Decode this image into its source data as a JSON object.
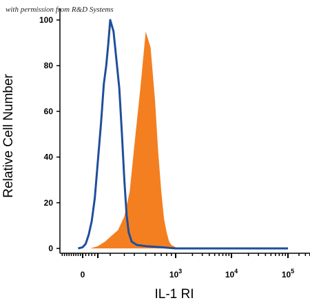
{
  "watermark": "with permission from R&D Systems",
  "chart_data": {
    "type": "area",
    "xlabel": "IL-1 RI",
    "ylabel": "Relative Cell Number",
    "x_scale": "biexponential (log above ~10^2)",
    "ylim": [
      0,
      100
    ],
    "y_ticks": [
      "0",
      "20",
      "40",
      "60",
      "80",
      "100"
    ],
    "x_ticks": [
      {
        "base": "0",
        "exp": ""
      },
      {
        "base": "10",
        "exp": "3"
      },
      {
        "base": "10",
        "exp": "4"
      },
      {
        "base": "10",
        "exp": "5"
      }
    ],
    "grid": false,
    "series": [
      {
        "color": "#1f4e9c",
        "style": "outline",
        "points": [
          [
            -40,
            0
          ],
          [
            0,
            0.5
          ],
          [
            20,
            2
          ],
          [
            40,
            6
          ],
          [
            60,
            12
          ],
          [
            80,
            22
          ],
          [
            100,
            38
          ],
          [
            120,
            55
          ],
          [
            140,
            72
          ],
          [
            160,
            80
          ],
          [
            180,
            90
          ],
          [
            200,
            100
          ],
          [
            220,
            95
          ],
          [
            240,
            82
          ],
          [
            260,
            70
          ],
          [
            280,
            50
          ],
          [
            300,
            30
          ],
          [
            320,
            15
          ],
          [
            340,
            7
          ],
          [
            370,
            3
          ],
          [
            420,
            1.5
          ],
          [
            500,
            1
          ],
          [
            700,
            0.5
          ],
          [
            1000,
            0
          ],
          [
            100000,
            0
          ]
        ]
      },
      {
        "color": "#f47f20",
        "style": "filled",
        "points": [
          [
            -40,
            0
          ],
          [
            50,
            0
          ],
          [
            100,
            1
          ],
          [
            150,
            3
          ],
          [
            200,
            5
          ],
          [
            250,
            8
          ],
          [
            300,
            14
          ],
          [
            350,
            25
          ],
          [
            400,
            45
          ],
          [
            450,
            70
          ],
          [
            500,
            95
          ],
          [
            550,
            88
          ],
          [
            600,
            65
          ],
          [
            650,
            42
          ],
          [
            700,
            25
          ],
          [
            750,
            13
          ],
          [
            800,
            7
          ],
          [
            850,
            3
          ],
          [
            900,
            1.5
          ],
          [
            1000,
            0.5
          ],
          [
            1200,
            0
          ],
          [
            100000,
            0
          ]
        ]
      }
    ]
  }
}
